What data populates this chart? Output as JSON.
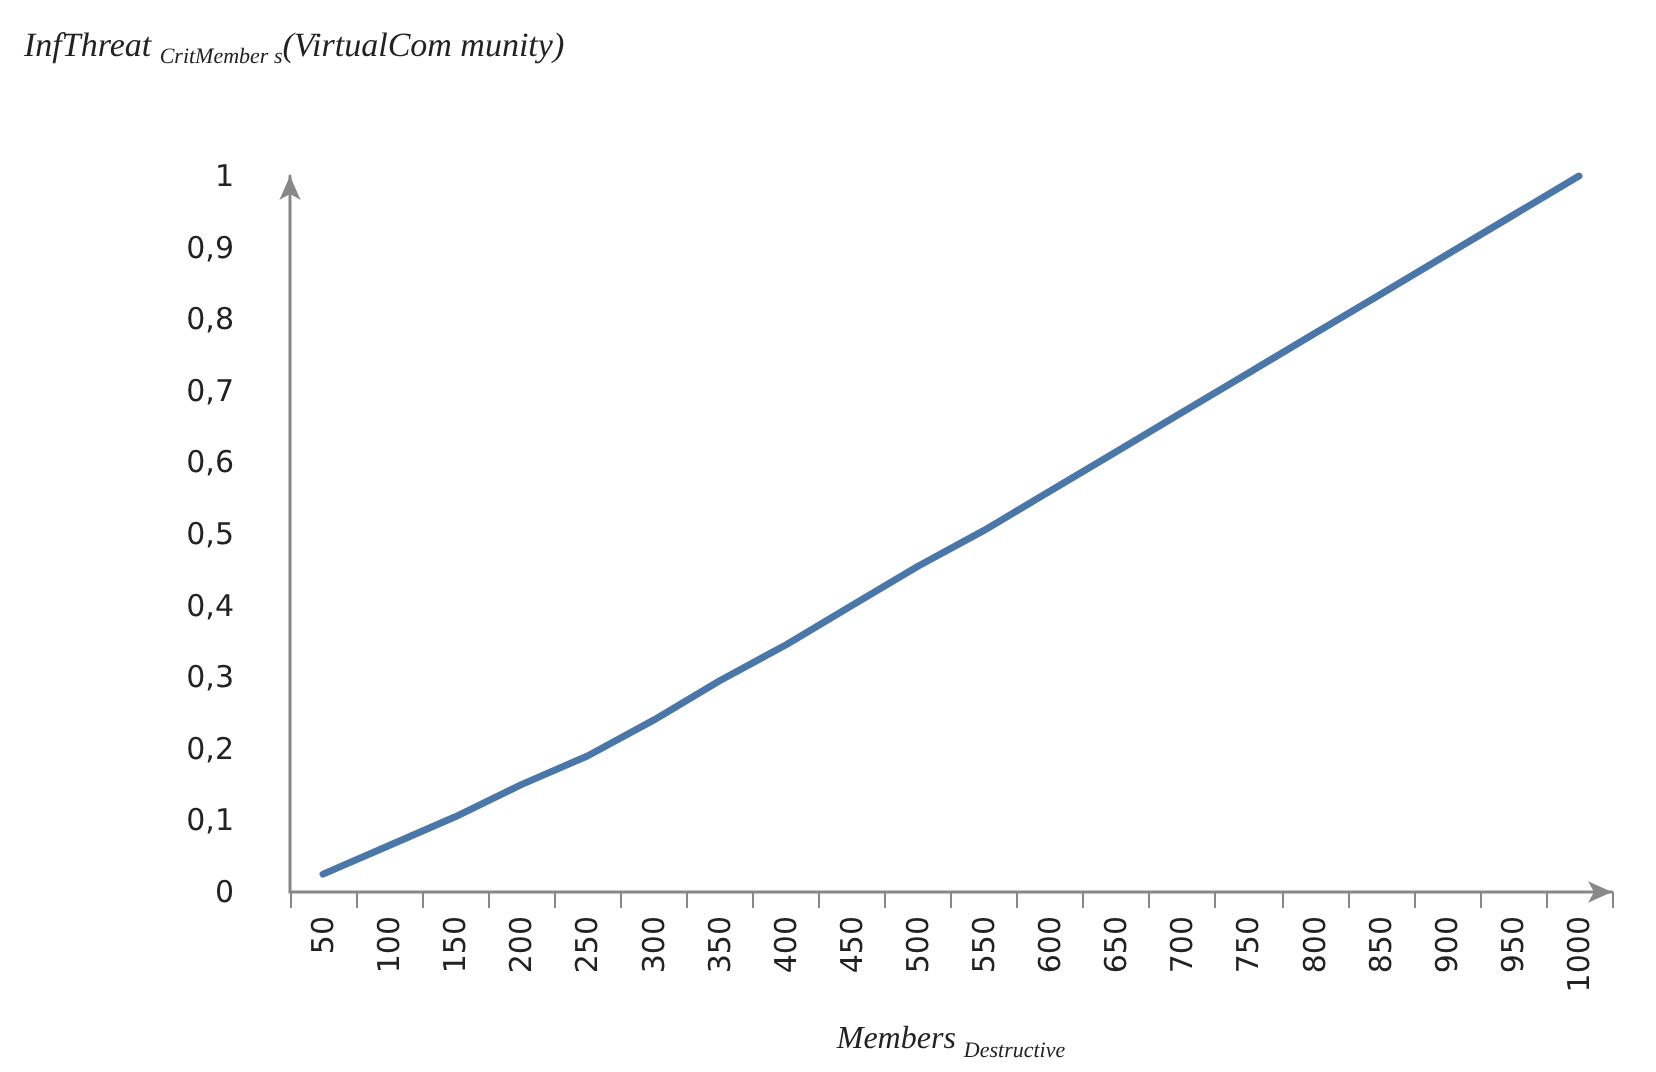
{
  "chart_data": {
    "type": "line",
    "ylabel": "InfThreat $_{CritMember s}$(VirtualCom munity)",
    "xlabel": "Members $_{Destructive}$",
    "categories": [
      "50",
      "100",
      "150",
      "200",
      "250",
      "300",
      "350",
      "400",
      "450",
      "500",
      "550",
      "600",
      "650",
      "700",
      "750",
      "800",
      "850",
      "900",
      "950",
      "1000"
    ],
    "series": [
      {
        "color": "#4a76a8",
        "values": [
          0.025,
          0.065,
          0.105,
          0.15,
          0.19,
          0.24,
          0.295,
          0.345,
          0.4,
          0.455,
          0.505,
          0.56,
          0.615,
          0.67,
          0.725,
          0.78,
          0.835,
          0.89,
          0.945,
          1.0
        ]
      }
    ],
    "ylim": [
      0,
      1
    ],
    "yticks": [
      {
        "value": 0,
        "label": "0"
      },
      {
        "value": 0.1,
        "label": "0,1"
      },
      {
        "value": 0.2,
        "label": "0,2"
      },
      {
        "value": 0.3,
        "label": "0,3"
      },
      {
        "value": 0.4,
        "label": "0,4"
      },
      {
        "value": 0.5,
        "label": "0,5"
      },
      {
        "value": 0.6,
        "label": "0,6"
      },
      {
        "value": 0.7,
        "label": "0,7"
      },
      {
        "value": 0.8,
        "label": "0,8"
      },
      {
        "value": 0.9,
        "label": "0,9"
      },
      {
        "value": 1,
        "label": "1"
      }
    ],
    "grid": false,
    "marker": "none",
    "line_style": "solid"
  }
}
